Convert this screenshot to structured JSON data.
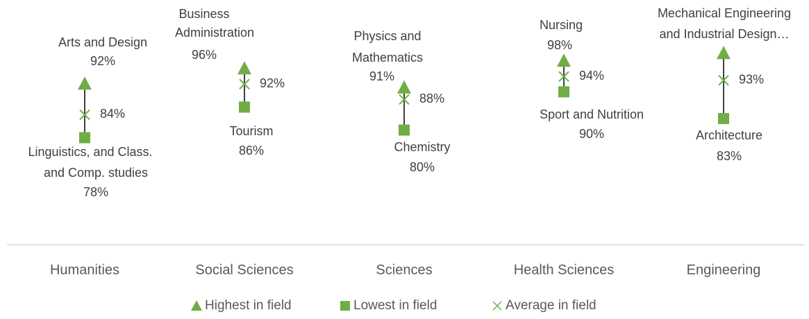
{
  "chart_data": {
    "type": "range",
    "categories": [
      "Humanities",
      "Social Sciences",
      "Sciences",
      "Health Sciences",
      "Engineering"
    ],
    "series": [
      {
        "name": "Highest in field",
        "color": "#70ad47",
        "marker": "triangle",
        "values": [
          92,
          96,
          91,
          98,
          100
        ],
        "value_labels": [
          "92%",
          "96%",
          "91%",
          "98%",
          null
        ],
        "point_labels": [
          [
            "Arts and Design"
          ],
          [
            "Business",
            "Administration"
          ],
          [
            "Physics and",
            "Mathematics"
          ],
          [
            "Nursing"
          ],
          [
            "Mechanical Engineering",
            "and Industrial Design…"
          ]
        ]
      },
      {
        "name": "Lowest in field",
        "color": "#70ad47",
        "marker": "square",
        "values": [
          78,
          86,
          80,
          90,
          83
        ],
        "value_labels": [
          "78%",
          "86%",
          "80%",
          "90%",
          "83%"
        ],
        "point_labels": [
          [
            "Linguistics, and Class.",
            "and Comp. studies"
          ],
          [
            "Tourism"
          ],
          [
            "Chemistry"
          ],
          [
            "Sport and Nutrition"
          ],
          [
            "Architecture"
          ]
        ]
      },
      {
        "name": "Average in field",
        "color": "#70ad47",
        "marker": "x",
        "values": [
          84,
          92,
          88,
          94,
          93
        ],
        "value_labels": [
          "84%",
          "92%",
          "88%",
          "94%",
          "93%"
        ]
      }
    ],
    "ylim": [
      50,
      114
    ],
    "legend": "bottom"
  }
}
